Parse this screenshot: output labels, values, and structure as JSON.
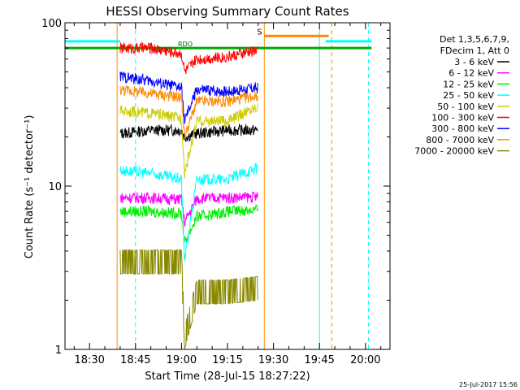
{
  "chart_data": {
    "type": "line",
    "title": "HESSI Observing Summary Count Rates",
    "xlabel": "Start Time (28-Jul-15 18:27:22)",
    "ylabel": "Count Rate (s⁻¹ detector⁻¹)",
    "y_scale": "log",
    "ylim": [
      1,
      100
    ],
    "xlim_minutes": [
      "18:22",
      "20:08"
    ],
    "x_ticks": [
      "18:30",
      "18:45",
      "19:00",
      "19:15",
      "19:30",
      "19:45",
      "20:00"
    ],
    "y_ticks": [
      "1",
      "10",
      "100"
    ],
    "legend": {
      "header": [
        "Det 1,3,5,6,7,9,",
        "FDecim 1, Att 0"
      ],
      "entries": [
        {
          "label": "3 - 6 keV",
          "color": "#000000"
        },
        {
          "label": "6 - 12 keV",
          "color": "#ff00ff"
        },
        {
          "label": "12 - 25 keV",
          "color": "#00ee00"
        },
        {
          "label": "25 - 50 keV",
          "color": "#00ffff"
        },
        {
          "label": "50 - 100 keV",
          "color": "#cccc00"
        },
        {
          "label": "100 - 300 keV",
          "color": "#ff0000"
        },
        {
          "label": "300 - 800 keV",
          "color": "#0000ff"
        },
        {
          "label": "800 - 7000 keV",
          "color": "#ff8800"
        },
        {
          "label": "7000 - 20000 keV",
          "color": "#888800"
        }
      ]
    },
    "series": [
      {
        "name": "3 - 6 keV",
        "color": "#000000",
        "x": [
          "18:40",
          "18:50",
          "19:00",
          "19:01",
          "19:05",
          "19:15",
          "19:25"
        ],
        "y": [
          21,
          22,
          22,
          20,
          21,
          22,
          22
        ]
      },
      {
        "name": "6 - 12 keV",
        "color": "#ff00ff",
        "x": [
          "18:40",
          "18:50",
          "19:00",
          "19:01",
          "19:05",
          "19:15",
          "19:25"
        ],
        "y": [
          8.5,
          8.5,
          8.3,
          6,
          8.4,
          8.5,
          8.6
        ]
      },
      {
        "name": "12 - 25 keV",
        "color": "#00ee00",
        "x": [
          "18:40",
          "18:50",
          "19:00",
          "19:01",
          "19:05",
          "19:15",
          "19:25"
        ],
        "y": [
          7,
          7,
          6.8,
          4.5,
          6.5,
          7,
          7.2
        ]
      },
      {
        "name": "25 - 50 keV",
        "color": "#00ffff",
        "x": [
          "18:40",
          "18:50",
          "19:00",
          "19:01",
          "19:05",
          "19:15",
          "19:25"
        ],
        "y": [
          12.5,
          12,
          11,
          3.5,
          11,
          11,
          13
        ]
      },
      {
        "name": "50 - 100 keV",
        "color": "#cccc00",
        "x": [
          "18:40",
          "18:50",
          "19:00",
          "19:01",
          "19:05",
          "19:15",
          "19:25"
        ],
        "y": [
          29,
          28,
          26,
          12,
          25,
          25,
          31
        ]
      },
      {
        "name": "100 - 300 keV",
        "color": "#ff0000",
        "x": [
          "18:40",
          "18:50",
          "19:00",
          "19:01",
          "19:05",
          "19:15",
          "19:25"
        ],
        "y": [
          70,
          70,
          65,
          50,
          60,
          62,
          68
        ]
      },
      {
        "name": "300 - 800 keV",
        "color": "#0000ff",
        "x": [
          "18:40",
          "18:50",
          "19:00",
          "19:01",
          "19:05",
          "19:15",
          "19:25"
        ],
        "y": [
          47,
          44,
          40,
          25,
          39,
          38,
          40
        ]
      },
      {
        "name": "800 - 7000 keV",
        "color": "#ff8800",
        "x": [
          "18:40",
          "18:50",
          "19:00",
          "19:01",
          "19:05",
          "19:15",
          "19:25"
        ],
        "y": [
          39,
          37,
          35,
          20,
          33,
          33,
          36
        ]
      },
      {
        "name": "7000 - 20000 keV",
        "color": "#888800",
        "x": [
          "18:40",
          "18:50",
          "19:00",
          "19:01",
          "19:05",
          "19:15",
          "19:25"
        ],
        "y": [
          2.9,
          2.9,
          2.9,
          1,
          1.9,
          1.9,
          2
        ]
      }
    ],
    "flag_bars": [
      {
        "label": "S",
        "color": "#ff8800",
        "x": [
          "19:27",
          "19:48"
        ],
        "y": 83
      },
      {
        "color": "#00ffff",
        "x": [
          "18:22",
          "18:40"
        ],
        "y": 77
      },
      {
        "color": "#00ffff",
        "x": [
          "19:47",
          "20:02"
        ],
        "y": 77
      },
      {
        "color": "#00aa00",
        "x": [
          "18:22",
          "20:02"
        ],
        "y": 70
      }
    ],
    "flag_labels": [
      {
        "text": "RDO",
        "color": "#006600"
      },
      {
        "text": "RDO",
        "color": "#006600"
      }
    ],
    "vertical_markers": [
      {
        "x": "18:22",
        "color": "#00ffff",
        "style": "solid"
      },
      {
        "x": "18:39",
        "color": "#ff8800",
        "style": "solid"
      },
      {
        "x": "18:45",
        "color": "#00ffff",
        "style": "dashed"
      },
      {
        "x": "19:27",
        "color": "#ff8800",
        "style": "solid"
      },
      {
        "x": "19:45",
        "color": "#00ffff",
        "style": "solid"
      },
      {
        "x": "19:49",
        "color": "#ff8800",
        "style": "dashed"
      },
      {
        "x": "20:01",
        "color": "#00ffff",
        "style": "dashed"
      }
    ],
    "grid": false,
    "legend_placement": "right"
  },
  "footer_timestamp": "25-Jul-2017 15:56"
}
